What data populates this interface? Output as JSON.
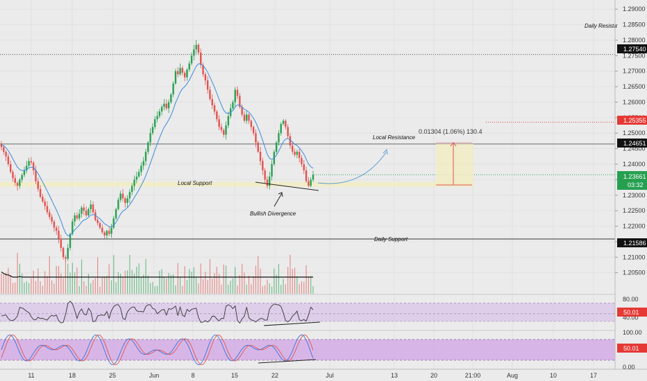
{
  "colors": {
    "up": "#26a050",
    "down": "#e0524f",
    "ma": "#3b8ad9",
    "resistance_tag": "#e53935",
    "price_tag": "#26a050",
    "oscillator_fill": "#d9c2e8",
    "stoch_fill": "#cf9fe6"
  },
  "chart_data": {
    "type": "candlestick",
    "symbol_hint": "",
    "price_axis": {
      "range": [
        1.198,
        1.2925
      ],
      "ticks": [
        "1.29000",
        "1.28500",
        "1.28000",
        "1.27500",
        "1.27000",
        "1.26500",
        "1.26000",
        "1.25500",
        "1.25000",
        "1.24500",
        "1.24000",
        "1.23500",
        "1.23000",
        "1.22500",
        "1.22000",
        "1.21500",
        "1.21000",
        "1.20500"
      ]
    },
    "time_axis": {
      "labels": [
        "11",
        "18",
        "25",
        "Jun",
        "8",
        "15",
        "22",
        "Jul",
        "13",
        "20",
        "21:00",
        "Aug",
        "10",
        "17"
      ]
    },
    "price_tags": {
      "daily_resistance_level": "1.27540",
      "resistance_red": "1.25355",
      "local_resistance": "1.24651",
      "current_price": "1.23661",
      "countdown": "03:32",
      "daily_support": "1.21586"
    },
    "levels": {
      "daily_resistance": 1.2754,
      "local_resistance": 1.24651,
      "daily_support": 1.21586,
      "red_dotted": 1.25355,
      "local_support_zone": [
        1.2327,
        1.2343
      ]
    },
    "annotations": {
      "daily_resistance": "Daily Resista",
      "local_resistance": "Local Resistance",
      "local_support": "Local Support",
      "bullish_divergence": "Bullish Divergence",
      "daily_support": "Daily Support",
      "measure": "0.01304 (1.06%) 130.4"
    },
    "candle_start_price": 1.2465,
    "candle_closes": [
      1.2455,
      1.244,
      1.2425,
      1.24,
      1.2375,
      1.2355,
      1.234,
      1.233,
      1.235,
      1.2365,
      1.238,
      1.2395,
      1.241,
      1.2405,
      1.238,
      1.2345,
      1.232,
      1.2295,
      1.228,
      1.2265,
      1.2245,
      1.223,
      1.2215,
      1.2195,
      1.2185,
      1.216,
      1.213,
      1.21,
      1.2095,
      1.213,
      1.2175,
      1.2215,
      1.2235,
      1.2225,
      1.224,
      1.226,
      1.225,
      1.2235,
      1.2255,
      1.227,
      1.2245,
      1.222,
      1.221,
      1.2195,
      1.218,
      1.217,
      1.2185,
      1.2175,
      1.2195,
      1.2225,
      1.2255,
      1.2285,
      1.2305,
      1.229,
      1.2275,
      1.229,
      1.231,
      1.233,
      1.235,
      1.236,
      1.2375,
      1.2395,
      1.241,
      1.244,
      1.247,
      1.25,
      1.252,
      1.2545,
      1.2555,
      1.257,
      1.2585,
      1.2595,
      1.258,
      1.26,
      1.2625,
      1.266,
      1.27,
      1.269,
      1.271,
      1.2695,
      1.268,
      1.2705,
      1.2725,
      1.275,
      1.277,
      1.2785,
      1.276,
      1.272,
      1.269,
      1.267,
      1.264,
      1.261,
      1.259,
      1.257,
      1.2545,
      1.252,
      1.251,
      1.2495,
      1.2525,
      1.2555,
      1.258,
      1.26,
      1.264,
      1.262,
      1.2585,
      1.256,
      1.254,
      1.256,
      1.254,
      1.252,
      1.25,
      1.247,
      1.244,
      1.241,
      1.238,
      1.235,
      1.233,
      1.236,
      1.24,
      1.244,
      1.247,
      1.25,
      1.253,
      1.254,
      1.252,
      1.249,
      1.246,
      1.244,
      1.243,
      1.244,
      1.242,
      1.24,
      1.238,
      1.2345,
      1.233,
      1.235,
      1.2366
    ],
    "volume_ma_label": "",
    "rsi": {
      "axis_ticks": [
        "80.00",
        "40.00"
      ],
      "value": "50.01",
      "bands": [
        30,
        70
      ]
    },
    "stoch": {
      "axis_ticks": [
        "100.00",
        "50.00",
        "0.00"
      ],
      "value": "50.01",
      "bands": [
        20,
        80
      ]
    }
  }
}
